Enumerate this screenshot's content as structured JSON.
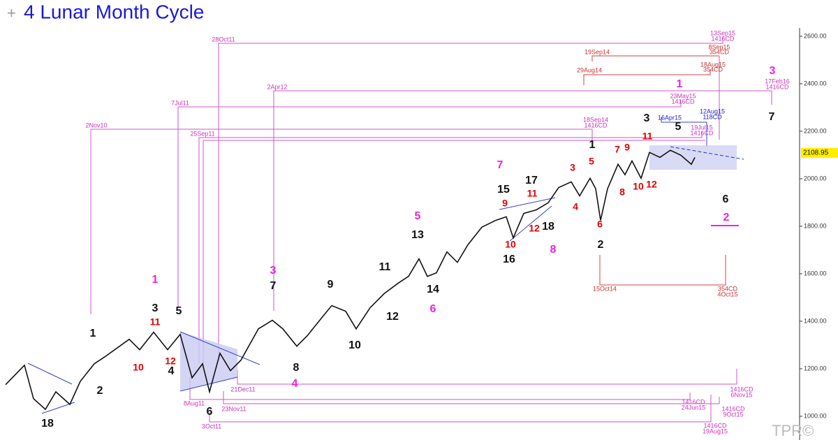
{
  "chart_data": {
    "type": "line",
    "title": "4 Lunar Month Cycle",
    "x": [
      1.6,
      7,
      9.6,
      13,
      16,
      20,
      23,
      27,
      30,
      37,
      40,
      44,
      48,
      51.6,
      55,
      58,
      60,
      63,
      66,
      69,
      74,
      78,
      81,
      85,
      88,
      92,
      95,
      99,
      102,
      106,
      110,
      114,
      117,
      120,
      122.4,
      125,
      128,
      131,
      134,
      138,
      142,
      145,
      147,
      150,
      153.6,
      157,
      160,
      163.6,
      166,
      169,
      170.6,
      172,
      174,
      177,
      179,
      181,
      183.6,
      186,
      189,
      192,
      195,
      198,
      199
    ],
    "series": [
      {
        "color": "#111111",
        "values": [
          1133,
          1215,
          1074,
          1029,
          1103,
          1050,
          1147,
          1221,
          1250,
          1324,
          1280,
          1354,
          1280,
          1345,
          1162,
          1221,
          1103,
          1265,
          1192,
          1236,
          1368,
          1404,
          1368,
          1295,
          1339,
          1412,
          1466,
          1442,
          1368,
          1457,
          1516,
          1560,
          1589,
          1663,
          1589,
          1604,
          1692,
          1648,
          1722,
          1796,
          1825,
          1840,
          1751,
          1854,
          1869,
          1899,
          1963,
          1987,
          1928,
          2002,
          1958,
          1825,
          1958,
          2061,
          2017,
          2075,
          2002,
          2111,
          2090,
          2120,
          2099,
          2061,
          2090
        ]
      }
    ],
    "xlim": [
      0,
      229
    ],
    "ylim": [
      900,
      2635
    ],
    "yticks": [
      {
        "value": 1000,
        "label": "1000.00"
      },
      {
        "value": 1200,
        "label": "1200.00"
      },
      {
        "value": 1400,
        "label": "1400.00"
      },
      {
        "value": 1600,
        "label": "1600.00"
      },
      {
        "value": 1800,
        "label": "1800.00"
      },
      {
        "value": 2000,
        "label": "2000.00"
      },
      {
        "value": 2200,
        "label": "2200.00"
      },
      {
        "value": 2400,
        "label": "2400.00"
      },
      {
        "value": 2600,
        "label": "2600.00"
      }
    ],
    "last_price": 2108.95,
    "watermark": "TPR©",
    "annotations": [
      {
        "text": "1",
        "color": "#111111"
      },
      {
        "text": "2",
        "color": "#111111"
      },
      {
        "text": "18",
        "color": "#111111"
      },
      {
        "text": "3",
        "color": "#111111"
      },
      {
        "text": "11",
        "color": "#e00000"
      },
      {
        "text": "10",
        "color": "#e00000"
      },
      {
        "text": "12",
        "color": "#e00000"
      },
      {
        "text": "4",
        "color": "#111111"
      },
      {
        "text": "5",
        "color": "#111111"
      },
      {
        "text": "6",
        "color": "#111111"
      },
      {
        "text": "1",
        "color": "#ee22dd"
      },
      {
        "text": "3",
        "color": "#ee22dd"
      },
      {
        "text": "7",
        "color": "#111111"
      },
      {
        "text": "4",
        "color": "#ee22dd"
      },
      {
        "text": "8",
        "color": "#111111"
      },
      {
        "text": "9",
        "color": "#111111"
      },
      {
        "text": "10",
        "color": "#111111"
      },
      {
        "text": "11",
        "color": "#111111"
      },
      {
        "text": "12",
        "color": "#111111"
      },
      {
        "text": "13",
        "color": "#111111"
      },
      {
        "text": "5",
        "color": "#ee22dd"
      },
      {
        "text": "14",
        "color": "#111111"
      },
      {
        "text": "6",
        "color": "#ee22dd"
      },
      {
        "text": "7",
        "color": "#ee22dd"
      },
      {
        "text": "15",
        "color": "#111111"
      },
      {
        "text": "17",
        "color": "#111111"
      },
      {
        "text": "9",
        "color": "#e00000"
      },
      {
        "text": "11",
        "color": "#e00000"
      },
      {
        "text": "10",
        "color": "#e00000"
      },
      {
        "text": "12",
        "color": "#e00000"
      },
      {
        "text": "18",
        "color": "#111111"
      },
      {
        "text": "16",
        "color": "#111111"
      },
      {
        "text": "8",
        "color": "#ee22dd"
      },
      {
        "text": "3",
        "color": "#e00000"
      },
      {
        "text": "1",
        "color": "#111111"
      },
      {
        "text": "5",
        "color": "#e00000"
      },
      {
        "text": "4",
        "color": "#e00000"
      },
      {
        "text": "6",
        "color": "#e00000"
      },
      {
        "text": "2",
        "color": "#111111"
      },
      {
        "text": "7",
        "color": "#e00000"
      },
      {
        "text": "9",
        "color": "#e00000"
      },
      {
        "text": "8",
        "color": "#e00000"
      },
      {
        "text": "10",
        "color": "#e00000"
      },
      {
        "text": "12",
        "color": "#e00000"
      },
      {
        "text": "11",
        "color": "#e00000"
      },
      {
        "text": "3",
        "color": "#111111"
      },
      {
        "text": "5",
        "color": "#111111"
      },
      {
        "text": "1",
        "color": "#ee22dd"
      },
      {
        "text": "6",
        "color": "#111111"
      },
      {
        "text": "2",
        "color": "#ee22dd"
      },
      {
        "text": "3",
        "color": "#ee22dd"
      },
      {
        "text": "7",
        "color": "#111111"
      },
      {
        "text": "28Oct11",
        "color": "#cc33bb"
      },
      {
        "text": "2Apr12",
        "color": "#cc33bb"
      },
      {
        "text": "7Jul11",
        "color": "#cc33bb"
      },
      {
        "text": "2Nov10",
        "color": "#cc33bb"
      },
      {
        "text": "25Sep11",
        "color": "#cc33bb"
      },
      {
        "text": "19Sep14",
        "color": "#cc3333"
      },
      {
        "text": "29Aug14",
        "color": "#cc3333"
      },
      {
        "text": "18Sep14",
        "color": "#cc33bb"
      },
      {
        "text": "1416CD",
        "color": "#cc33bb"
      },
      {
        "text": "13Sep15",
        "color": "#cc33bb"
      },
      {
        "text": "1416CD",
        "color": "#cc33bb"
      },
      {
        "text": "8Sep15",
        "color": "#cc3333"
      },
      {
        "text": "354CD",
        "color": "#cc3333"
      },
      {
        "text": "18Aug15",
        "color": "#cc3333"
      },
      {
        "text": "354CD",
        "color": "#cc3333"
      },
      {
        "text": "17Feb16",
        "color": "#cc33bb"
      },
      {
        "text": "1416CD",
        "color": "#cc33bb"
      },
      {
        "text": "23May15",
        "color": "#cc33bb"
      },
      {
        "text": "1416CD",
        "color": "#cc33bb"
      },
      {
        "text": "16Apr15",
        "color": "#2222cc"
      },
      {
        "text": "12Aug15",
        "color": "#2222cc"
      },
      {
        "text": "118CD",
        "color": "#2222cc"
      },
      {
        "text": "19Jul15",
        "color": "#cc33bb"
      },
      {
        "text": "1416CD",
        "color": "#cc33bb"
      },
      {
        "text": "15Oct14",
        "color": "#cc3333"
      },
      {
        "text": "354CD",
        "color": "#cc3333"
      },
      {
        "text": "4Oct15",
        "color": "#cc3333"
      },
      {
        "text": "21Dec11",
        "color": "#cc33bb"
      },
      {
        "text": "8Aug11",
        "color": "#cc33bb"
      },
      {
        "text": "23Nov11",
        "color": "#cc33bb"
      },
      {
        "text": "3Oct11",
        "color": "#cc33bb"
      },
      {
        "text": "1416CD",
        "color": "#cc33bb"
      },
      {
        "text": "6Nov15",
        "color": "#cc33bb"
      },
      {
        "text": "1416CD",
        "color": "#cc33bb"
      },
      {
        "text": "24Jun15",
        "color": "#cc33bb"
      },
      {
        "text": "1416CD",
        "color": "#cc33bb"
      },
      {
        "text": "9Oct15",
        "color": "#cc33bb"
      },
      {
        "text": "1416CD",
        "color": "#cc33bb"
      },
      {
        "text": "19Aug15",
        "color": "#cc33bb"
      }
    ]
  }
}
